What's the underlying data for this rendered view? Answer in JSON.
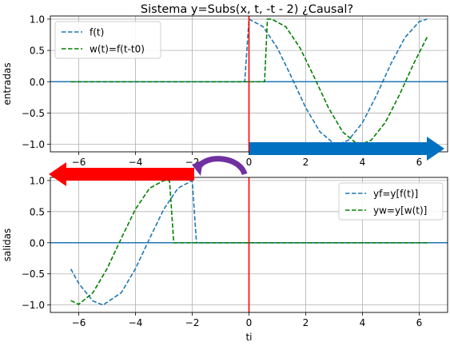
{
  "figure": {
    "title": "Sistema y=Subs(x, t, -t - 2)  ¿Causal?"
  },
  "colors": {
    "f_series": "#1f77b4",
    "w_series": "#008000",
    "axis_line": "#1f77b4",
    "origin_line": "#ff0000",
    "arrow_right": "#0070c0",
    "arrow_left": "#ff0000",
    "curved_arrow": "#7030a0"
  },
  "chart_data": [
    {
      "type": "line",
      "ylabel": "entradas",
      "xlabel": "",
      "xlim": [
        -7,
        7
      ],
      "ylim": [
        -1.12,
        1.05
      ],
      "x_ticks": [
        -6,
        -4,
        -2,
        0,
        2,
        4,
        6
      ],
      "y_ticks": [
        -1.0,
        -0.5,
        0.0,
        0.5,
        1.0
      ],
      "x_tick_labels": [
        "−6",
        "−4",
        "−2",
        "0",
        "2",
        "4",
        "6"
      ],
      "y_tick_labels": [
        "−1.0",
        "−0.5",
        "0.0",
        "0.5",
        "1.0"
      ],
      "grid": true,
      "legend_position": "top-left",
      "series": [
        {
          "name": "f(t)",
          "style": "dashed",
          "x": [
            -6.28,
            -3,
            -0.15,
            0,
            0.5,
            1,
            1.5,
            2,
            2.5,
            3,
            3.14,
            3.5,
            4,
            4.5,
            5,
            5.5,
            6,
            6.28
          ],
          "y": [
            0,
            0,
            0,
            1,
            0.878,
            0.54,
            0.071,
            -0.416,
            -0.801,
            -0.99,
            -1,
            -0.936,
            -0.654,
            -0.211,
            0.284,
            0.709,
            0.96,
            1
          ]
        },
        {
          "name": "w(t)=f(t-t0)",
          "style": "dashed",
          "x": [
            -6.28,
            0.55,
            0.65,
            0.8,
            1.3,
            1.8,
            2.3,
            2.8,
            3.3,
            3.8,
            3.94,
            4.3,
            4.8,
            5.3,
            5.8,
            6.28
          ],
          "y": [
            0,
            0,
            1,
            1,
            0.878,
            0.54,
            0.071,
            -0.416,
            -0.801,
            -0.99,
            -1,
            -0.936,
            -0.654,
            -0.211,
            0.284,
            0.714
          ]
        }
      ]
    },
    {
      "type": "line",
      "ylabel": "salidas",
      "xlabel": "ti",
      "xlim": [
        -7,
        7
      ],
      "ylim": [
        -1.12,
        1.05
      ],
      "x_ticks": [
        -6,
        -4,
        -2,
        0,
        2,
        4,
        6
      ],
      "y_ticks": [
        -1.0,
        -0.5,
        0.0,
        0.5,
        1.0
      ],
      "x_tick_labels": [
        "−6",
        "−4",
        "−2",
        "0",
        "2",
        "4",
        "6"
      ],
      "y_tick_labels": [
        "−1.0",
        "−0.5",
        "0.0",
        "0.5",
        "1.0"
      ],
      "grid": true,
      "legend_position": "top-right",
      "series": [
        {
          "name": "yf=y[f(t)]",
          "style": "dashed",
          "x": [
            -6.28,
            -6,
            -5.5,
            -5.14,
            -4.5,
            -4,
            -3.5,
            -3,
            -2.5,
            -2,
            -1.85,
            6.28
          ],
          "y": [
            -0.421,
            -0.654,
            -0.936,
            -1,
            -0.801,
            -0.416,
            0.071,
            0.54,
            0.878,
            1,
            0,
            0
          ],
          "x_alt_note": ""
        },
        {
          "name": "yw=y[w(t)]",
          "style": "dashed",
          "x": [
            -6.28,
            -6.0,
            -5.5,
            -5.0,
            -4.5,
            -4.0,
            -3.5,
            -3.0,
            -2.8,
            -2.65,
            6.28
          ],
          "y": [
            -0.93,
            -0.99,
            -0.801,
            -0.416,
            0.071,
            0.54,
            0.878,
            1,
            1,
            0,
            0
          ]
        }
      ]
    }
  ]
}
